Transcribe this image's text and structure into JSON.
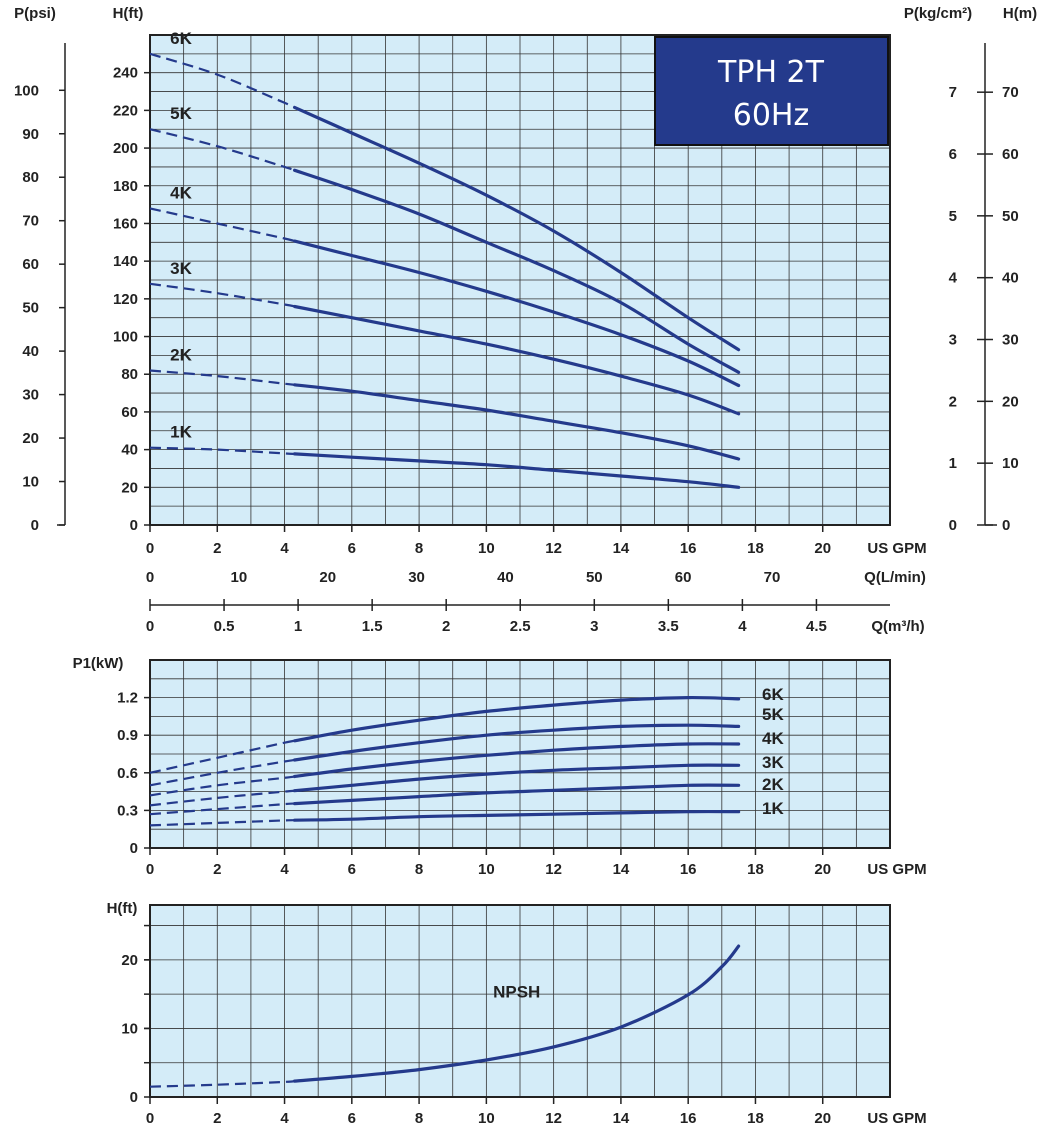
{
  "badge": {
    "line1": "TPH 2T",
    "line2": "60Hz"
  },
  "colors": {
    "plot_bg": "#d4ecf8",
    "grid": "#333333",
    "curve": "#243a8c",
    "badge_bg": "#243a8c"
  },
  "chart_data": [
    {
      "type": "line",
      "title": "",
      "xlabel": "US GPM",
      "ylabel": "H(ft)",
      "x_ticks": [
        "0",
        "2",
        "4",
        "6",
        "8",
        "10",
        "12",
        "14",
        "16",
        "18",
        "20"
      ],
      "xlim": [
        0,
        22
      ],
      "ylim": [
        0,
        260
      ],
      "y_ticks": [
        "0",
        "20",
        "40",
        "60",
        "80",
        "100",
        "120",
        "140",
        "160",
        "180",
        "200",
        "220",
        "240"
      ],
      "left_axis": {
        "label": "P(psi)",
        "ticks": [
          "0",
          "10",
          "20",
          "30",
          "40",
          "50",
          "60",
          "70",
          "80",
          "90",
          "100"
        ]
      },
      "right_axes": [
        {
          "label": "P(kg/cm²)",
          "ticks": [
            "0",
            "1",
            "2",
            "3",
            "4",
            "5",
            "6",
            "7"
          ]
        },
        {
          "label": "H(m)",
          "ticks": [
            "0",
            "10",
            "20",
            "30",
            "40",
            "50",
            "60",
            "70"
          ]
        }
      ],
      "secondary_x_axes": [
        {
          "label": "Q(L/min)",
          "ticks": [
            "0",
            "10",
            "20",
            "30",
            "40",
            "50",
            "60",
            "70"
          ]
        },
        {
          "label": "Q(m³/h)",
          "ticks": [
            "0",
            "0.5",
            "1",
            "1.5",
            "2",
            "2.5",
            "3",
            "3.5",
            "4",
            "4.5"
          ]
        }
      ],
      "dashed_until_x": 4.3,
      "series": [
        {
          "name": "6K",
          "x": [
            0,
            2,
            4,
            6,
            8,
            10,
            12,
            14,
            16,
            17.5
          ],
          "y": [
            250,
            239,
            224,
            208,
            192,
            175,
            156,
            134,
            110,
            93
          ]
        },
        {
          "name": "5K",
          "x": [
            0,
            2,
            4,
            6,
            8,
            10,
            12,
            14,
            16,
            17.5
          ],
          "y": [
            210,
            201,
            190,
            178,
            165,
            150,
            135,
            118,
            96,
            81
          ]
        },
        {
          "name": "4K",
          "x": [
            0,
            2,
            4,
            6,
            8,
            10,
            12,
            14,
            16,
            17.5
          ],
          "y": [
            168,
            160,
            152,
            143,
            134,
            124,
            113,
            101,
            87,
            74
          ]
        },
        {
          "name": "3K",
          "x": [
            0,
            2,
            4,
            6,
            8,
            10,
            12,
            14,
            16,
            17.5
          ],
          "y": [
            128,
            123,
            117,
            110,
            103,
            96,
            88,
            79,
            69,
            59
          ]
        },
        {
          "name": "2K",
          "x": [
            0,
            2,
            4,
            6,
            8,
            10,
            12,
            14,
            16,
            17.5
          ],
          "y": [
            82,
            79,
            75,
            71,
            66,
            61,
            55,
            49,
            42,
            35
          ]
        },
        {
          "name": "1K",
          "x": [
            0,
            2,
            4,
            6,
            8,
            10,
            12,
            14,
            16,
            17.5
          ],
          "y": [
            41,
            40,
            38,
            36,
            34,
            32,
            29,
            26,
            23,
            20
          ]
        }
      ]
    },
    {
      "type": "line",
      "title": "",
      "xlabel": "US GPM",
      "ylabel": "P1(kW)",
      "x_ticks": [
        "0",
        "2",
        "4",
        "6",
        "8",
        "10",
        "12",
        "14",
        "16",
        "18",
        "20"
      ],
      "xlim": [
        0,
        22
      ],
      "ylim": [
        0,
        1.5
      ],
      "y_ticks": [
        "0",
        "0.3",
        "0.6",
        "0.9",
        "1.2"
      ],
      "dashed_until_x": 4.3,
      "series": [
        {
          "name": "6K",
          "x": [
            0,
            2,
            4,
            6,
            8,
            10,
            12,
            14,
            16,
            17.5
          ],
          "y": [
            0.6,
            0.72,
            0.84,
            0.94,
            1.02,
            1.09,
            1.14,
            1.18,
            1.2,
            1.19
          ]
        },
        {
          "name": "5K",
          "x": [
            0,
            2,
            4,
            6,
            8,
            10,
            12,
            14,
            16,
            17.5
          ],
          "y": [
            0.5,
            0.6,
            0.69,
            0.77,
            0.84,
            0.9,
            0.94,
            0.97,
            0.98,
            0.97
          ]
        },
        {
          "name": "4K",
          "x": [
            0,
            2,
            4,
            6,
            8,
            10,
            12,
            14,
            16,
            17.5
          ],
          "y": [
            0.42,
            0.5,
            0.56,
            0.63,
            0.69,
            0.74,
            0.78,
            0.81,
            0.83,
            0.83
          ]
        },
        {
          "name": "3K",
          "x": [
            0,
            2,
            4,
            6,
            8,
            10,
            12,
            14,
            16,
            17.5
          ],
          "y": [
            0.34,
            0.4,
            0.45,
            0.5,
            0.55,
            0.59,
            0.62,
            0.64,
            0.66,
            0.66
          ]
        },
        {
          "name": "2K",
          "x": [
            0,
            2,
            4,
            6,
            8,
            10,
            12,
            14,
            16,
            17.5
          ],
          "y": [
            0.27,
            0.31,
            0.35,
            0.38,
            0.41,
            0.44,
            0.46,
            0.48,
            0.5,
            0.5
          ]
        },
        {
          "name": "1K",
          "x": [
            0,
            2,
            4,
            6,
            8,
            10,
            12,
            14,
            16,
            17.5
          ],
          "y": [
            0.18,
            0.2,
            0.22,
            0.23,
            0.25,
            0.26,
            0.27,
            0.28,
            0.29,
            0.29
          ]
        }
      ]
    },
    {
      "type": "line",
      "title": "",
      "xlabel": "US GPM",
      "ylabel": "H(ft)",
      "x_ticks": [
        "0",
        "2",
        "4",
        "6",
        "8",
        "10",
        "12",
        "14",
        "16",
        "18",
        "20"
      ],
      "xlim": [
        0,
        22
      ],
      "ylim": [
        0,
        28
      ],
      "y_ticks": [
        "0",
        "10",
        "20"
      ],
      "dashed_until_x": 4.3,
      "series": [
        {
          "name": "NPSH",
          "x": [
            0,
            2,
            4,
            6,
            8,
            10,
            12,
            14,
            16,
            17
          ],
          "y": [
            1.5,
            1.8,
            2.2,
            3.0,
            4.0,
            5.4,
            7.3,
            10.2,
            14.9,
            19.0
          ],
          "extra_x": [
            17.5
          ],
          "extra_y": [
            22
          ]
        }
      ]
    }
  ]
}
